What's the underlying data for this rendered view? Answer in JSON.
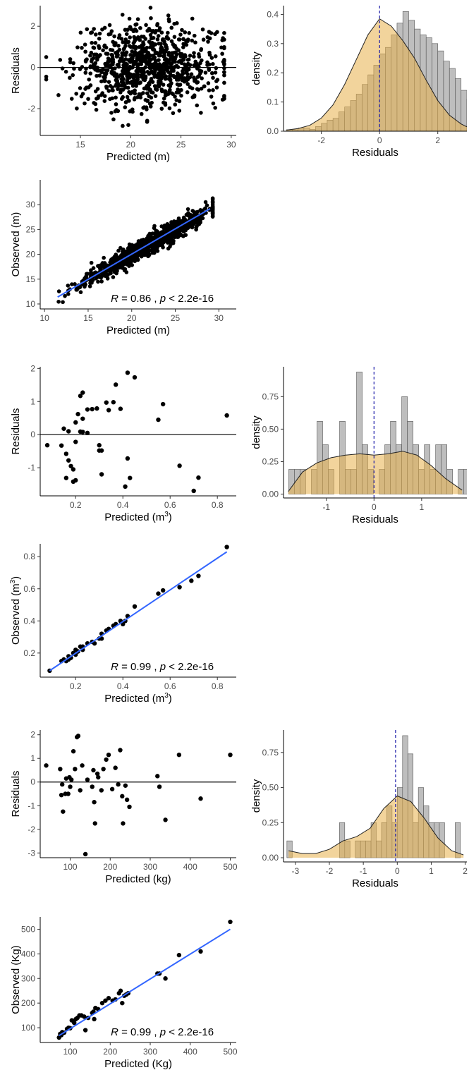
{
  "panels": [
    {
      "type": "scatter",
      "xlabel": "Predicted (m)",
      "ylabel": "Residuals",
      "xlim": [
        11,
        30.5
      ],
      "ylim": [
        -3.3,
        3.0
      ],
      "xticks": [
        15,
        20,
        25,
        30
      ],
      "yticks": [
        -2,
        0,
        2
      ],
      "hline": 0,
      "n_points": 900,
      "seed": 7
    },
    {
      "type": "histogram",
      "xlabel": "Residuals",
      "ylabel": "density",
      "xlim": [
        -3.3,
        3.0
      ],
      "ylim": [
        0,
        0.43
      ],
      "xticks": [
        -2,
        0,
        2
      ],
      "yticks": [
        0.0,
        0.1,
        0.2,
        0.3,
        0.4
      ],
      "ytick_labels": [
        "0.0",
        "0.1",
        "0.2",
        "0.3",
        "0.4"
      ],
      "vline": 0,
      "bin_width": 0.2,
      "bin_start": -3.2,
      "densities": [
        0.005,
        0.005,
        0.011,
        0.011,
        0.006,
        0.016,
        0.027,
        0.038,
        0.044,
        0.066,
        0.083,
        0.105,
        0.127,
        0.16,
        0.193,
        0.226,
        0.265,
        0.287,
        0.33,
        0.37,
        0.41,
        0.38,
        0.35,
        0.33,
        0.32,
        0.3,
        0.275,
        0.24,
        0.215,
        0.18,
        0.14,
        0.11,
        0.08
      ],
      "kde_x": [
        -3.2,
        -2.8,
        -2.4,
        -2.0,
        -1.6,
        -1.2,
        -0.8,
        -0.4,
        0.0,
        0.4,
        0.8,
        1.2,
        1.6,
        2.0,
        2.4,
        2.8,
        3.0
      ],
      "kde_y": [
        0.004,
        0.009,
        0.02,
        0.045,
        0.09,
        0.16,
        0.245,
        0.33,
        0.385,
        0.36,
        0.31,
        0.25,
        0.175,
        0.105,
        0.055,
        0.025,
        0.015
      ]
    },
    {
      "type": "scatter_fit",
      "xlabel": "Predicted (m)",
      "ylabel": "Observed (m)",
      "xlim": [
        9.5,
        32
      ],
      "ylim": [
        9,
        35
      ],
      "xticks": [
        10,
        15,
        20,
        25,
        30
      ],
      "yticks": [
        10,
        15,
        20,
        25,
        30
      ],
      "fit": [
        [
          11.5,
          11.4
        ],
        [
          29,
          29.2
        ]
      ],
      "n_points": 900,
      "seed": 11,
      "r_label": "R",
      "r_value": " = 0.86 , ",
      "p_label": "p",
      "p_value": " < 2.2e-16"
    },
    {
      "type": "scatter",
      "xlabel": "Predicted (m",
      "xlabel_sup": "3",
      "xlabel_end": ")",
      "ylabel": "Residuals",
      "xlim": [
        0.05,
        0.88
      ],
      "ylim": [
        -1.85,
        2.05
      ],
      "xticks": [
        0.2,
        0.4,
        0.6,
        0.8
      ],
      "yticks": [
        -1,
        0,
        1,
        2
      ],
      "hline": 0,
      "points": [
        [
          0.08,
          -0.32
        ],
        [
          0.14,
          -0.33
        ],
        [
          0.15,
          0.18
        ],
        [
          0.16,
          -0.58
        ],
        [
          0.16,
          -1.31
        ],
        [
          0.17,
          0.1
        ],
        [
          0.17,
          -0.78
        ],
        [
          0.18,
          -0.95
        ],
        [
          0.19,
          -1.42
        ],
        [
          0.19,
          -1.05
        ],
        [
          0.2,
          0.37
        ],
        [
          0.2,
          -1.38
        ],
        [
          0.2,
          -0.22
        ],
        [
          0.21,
          0.62
        ],
        [
          0.22,
          1.17
        ],
        [
          0.22,
          0.09
        ],
        [
          0.23,
          1.27
        ],
        [
          0.23,
          0.48
        ],
        [
          0.23,
          0.08
        ],
        [
          0.25,
          0.05
        ],
        [
          0.25,
          0.76
        ],
        [
          0.27,
          0.77
        ],
        [
          0.29,
          0.79
        ],
        [
          0.3,
          -0.32
        ],
        [
          0.3,
          -0.48
        ],
        [
          0.31,
          -0.48
        ],
        [
          0.31,
          -1.2
        ],
        [
          0.33,
          0.97
        ],
        [
          0.34,
          0.74
        ],
        [
          0.36,
          0.98
        ],
        [
          0.37,
          1.51
        ],
        [
          0.39,
          0.78
        ],
        [
          0.41,
          -1.57
        ],
        [
          0.42,
          -0.72
        ],
        [
          0.42,
          1.87
        ],
        [
          0.43,
          -1.31
        ],
        [
          0.45,
          1.73
        ],
        [
          0.55,
          0.45
        ],
        [
          0.57,
          0.92
        ],
        [
          0.64,
          -0.94
        ],
        [
          0.7,
          -1.7
        ],
        [
          0.72,
          -1.3
        ],
        [
          0.84,
          0.58
        ]
      ]
    },
    {
      "type": "histogram",
      "xlabel": "Residuals",
      "ylabel": "density",
      "xlim": [
        -1.9,
        1.95
      ],
      "ylim": [
        -0.03,
        0.98
      ],
      "xticks": [
        -1,
        0,
        1
      ],
      "yticks": [
        0.0,
        0.25,
        0.5,
        0.75
      ],
      "ytick_labels": [
        "0.00",
        "0.25",
        "0.50",
        "0.75"
      ],
      "vline": 0,
      "bin_width": 0.1186,
      "bin_start": -1.79,
      "densities": [
        0.19,
        0.19,
        0.19,
        0,
        0.19,
        0.56,
        0.38,
        0.19,
        0,
        0.56,
        0.19,
        0.19,
        0.94,
        0.38,
        0.19,
        0,
        0.19,
        0.38,
        0.56,
        0.38,
        0.75,
        0.56,
        0.38,
        0.19,
        0.38,
        0.19,
        0.38,
        0.38,
        0.19,
        0,
        0.19,
        0.19,
        0.19
      ],
      "kde_x": [
        -1.8,
        -1.5,
        -1.2,
        -0.9,
        -0.6,
        -0.3,
        0.0,
        0.3,
        0.6,
        0.9,
        1.2,
        1.5,
        1.85
      ],
      "kde_y": [
        0.02,
        0.17,
        0.24,
        0.28,
        0.3,
        0.31,
        0.3,
        0.31,
        0.33,
        0.3,
        0.22,
        0.12,
        0.03
      ]
    },
    {
      "type": "scatter_fit",
      "xlabel": "Predicted (m",
      "xlabel_sup": "3",
      "xlabel_end": ")",
      "ylabel": "Observed (m",
      "ylabel_sup": "3",
      "ylabel_end": ")",
      "xlim": [
        0.05,
        0.88
      ],
      "ylim": [
        0.05,
        0.88
      ],
      "xticks": [
        0.2,
        0.4,
        0.6,
        0.8
      ],
      "yticks": [
        0.2,
        0.4,
        0.6,
        0.8
      ],
      "fit": [
        [
          0.09,
          0.09
        ],
        [
          0.84,
          0.83
        ]
      ],
      "points": [
        [
          0.09,
          0.09
        ],
        [
          0.14,
          0.15
        ],
        [
          0.15,
          0.16
        ],
        [
          0.16,
          0.15
        ],
        [
          0.17,
          0.18
        ],
        [
          0.17,
          0.16
        ],
        [
          0.18,
          0.17
        ],
        [
          0.19,
          0.2
        ],
        [
          0.2,
          0.19
        ],
        [
          0.2,
          0.22
        ],
        [
          0.21,
          0.21
        ],
        [
          0.22,
          0.24
        ],
        [
          0.23,
          0.24
        ],
        [
          0.23,
          0.22
        ],
        [
          0.25,
          0.26
        ],
        [
          0.27,
          0.27
        ],
        [
          0.28,
          0.26
        ],
        [
          0.3,
          0.29
        ],
        [
          0.31,
          0.32
        ],
        [
          0.31,
          0.29
        ],
        [
          0.33,
          0.34
        ],
        [
          0.34,
          0.35
        ],
        [
          0.36,
          0.37
        ],
        [
          0.37,
          0.38
        ],
        [
          0.39,
          0.4
        ],
        [
          0.4,
          0.38
        ],
        [
          0.41,
          0.4
        ],
        [
          0.42,
          0.43
        ],
        [
          0.45,
          0.49
        ],
        [
          0.55,
          0.57
        ],
        [
          0.57,
          0.59
        ],
        [
          0.64,
          0.61
        ],
        [
          0.69,
          0.65
        ],
        [
          0.72,
          0.68
        ],
        [
          0.84,
          0.86
        ]
      ],
      "r_label": "R",
      "r_value": " = 0.99 , ",
      "p_label": "p",
      "p_value": " < 2.2e-16"
    },
    {
      "type": "scatter",
      "xlabel": "Predicted (kg)",
      "ylabel": "Residuals",
      "xlim": [
        25,
        515
      ],
      "ylim": [
        -3.2,
        2.2
      ],
      "xticks": [
        100,
        200,
        300,
        400,
        500
      ],
      "yticks": [
        -3,
        -2,
        -1,
        0,
        1,
        2
      ],
      "hline": 0,
      "points": [
        [
          40,
          0.7
        ],
        [
          75,
          0.55
        ],
        [
          78,
          -0.55
        ],
        [
          80,
          -0.1
        ],
        [
          82,
          -1.25
        ],
        [
          88,
          -0.5
        ],
        [
          90,
          0.15
        ],
        [
          95,
          -0.5
        ],
        [
          98,
          0.2
        ],
        [
          100,
          -0.2
        ],
        [
          103,
          0.1
        ],
        [
          108,
          1.3
        ],
        [
          112,
          0.55
        ],
        [
          117,
          1.9
        ],
        [
          120,
          1.95
        ],
        [
          125,
          -0.35
        ],
        [
          130,
          0.7
        ],
        [
          138,
          -3.05
        ],
        [
          143,
          0.1
        ],
        [
          155,
          -0.2
        ],
        [
          158,
          0.5
        ],
        [
          160,
          -0.85
        ],
        [
          162,
          -1.75
        ],
        [
          168,
          0.35
        ],
        [
          170,
          0.2
        ],
        [
          178,
          -0.35
        ],
        [
          183,
          0.55
        ],
        [
          190,
          0.95
        ],
        [
          196,
          1.15
        ],
        [
          205,
          -0.3
        ],
        [
          213,
          0.6
        ],
        [
          220,
          -0.1
        ],
        [
          225,
          1.35
        ],
        [
          230,
          -0.6
        ],
        [
          232,
          -1.75
        ],
        [
          238,
          -0.15
        ],
        [
          242,
          -0.75
        ],
        [
          248,
          -1.05
        ],
        [
          318,
          0.25
        ],
        [
          323,
          -0.2
        ],
        [
          338,
          -1.6
        ],
        [
          372,
          1.15
        ],
        [
          426,
          -0.7
        ],
        [
          500,
          1.15
        ]
      ]
    },
    {
      "type": "histogram",
      "xlabel": "Residuals",
      "ylabel": "density",
      "xlim": [
        -3.35,
        2.05
      ],
      "ylim": [
        -0.03,
        0.91
      ],
      "xticks": [
        -3,
        -2,
        -1,
        0,
        1,
        2
      ],
      "yticks": [
        0.0,
        0.25,
        0.5,
        0.75
      ],
      "ytick_labels": [
        "0.00",
        "0.25",
        "0.50",
        "0.75"
      ],
      "vline": -0.05,
      "bin_width": 0.1548,
      "bin_start": -3.25,
      "densities": [
        0.12,
        0,
        0,
        0,
        0,
        0,
        0,
        0,
        0,
        0,
        0.25,
        0.12,
        0,
        0.12,
        0.12,
        0.12,
        0.25,
        0.12,
        0.25,
        0.37,
        0.25,
        0.5,
        0.87,
        0.74,
        0.25,
        0.5,
        0.37,
        0.25,
        0.25,
        0.25,
        0,
        0,
        0.25
      ],
      "kde_x": [
        -3.2,
        -2.8,
        -2.4,
        -2.0,
        -1.6,
        -1.2,
        -0.8,
        -0.4,
        0.0,
        0.4,
        0.8,
        1.2,
        1.6,
        1.95
      ],
      "kde_y": [
        0.05,
        0.03,
        0.03,
        0.06,
        0.12,
        0.15,
        0.21,
        0.35,
        0.44,
        0.4,
        0.28,
        0.14,
        0.05,
        0.02
      ]
    },
    {
      "type": "scatter_fit",
      "xlabel": "Predicted (Kg)",
      "ylabel": "Observed  (Kg)",
      "xlim": [
        25,
        515
      ],
      "ylim": [
        40,
        550
      ],
      "xticks": [
        100,
        200,
        300,
        400,
        500
      ],
      "yticks": [
        100,
        200,
        300,
        400,
        500
      ],
      "fit": [
        [
          72,
          68
        ],
        [
          500,
          500
        ]
      ],
      "points": [
        [
          72,
          60
        ],
        [
          75,
          75
        ],
        [
          78,
          70
        ],
        [
          80,
          82
        ],
        [
          85,
          80
        ],
        [
          92,
          95
        ],
        [
          96,
          100
        ],
        [
          100,
          98
        ],
        [
          104,
          130
        ],
        [
          110,
          120
        ],
        [
          114,
          135
        ],
        [
          118,
          140
        ],
        [
          123,
          150
        ],
        [
          128,
          150
        ],
        [
          135,
          145
        ],
        [
          138,
          90
        ],
        [
          145,
          140
        ],
        [
          155,
          160
        ],
        [
          158,
          165
        ],
        [
          160,
          135
        ],
        [
          163,
          180
        ],
        [
          170,
          175
        ],
        [
          180,
          200
        ],
        [
          188,
          210
        ],
        [
          196,
          220
        ],
        [
          206,
          210
        ],
        [
          213,
          215
        ],
        [
          222,
          240
        ],
        [
          226,
          250
        ],
        [
          230,
          200
        ],
        [
          235,
          230
        ],
        [
          240,
          235
        ],
        [
          245,
          240
        ],
        [
          318,
          320
        ],
        [
          323,
          320
        ],
        [
          338,
          300
        ],
        [
          372,
          395
        ],
        [
          426,
          410
        ],
        [
          500,
          530
        ]
      ],
      "r_label": "R",
      "r_value": " = 0.99 , ",
      "p_label": "p",
      "p_value": " < 2.2e-16"
    }
  ],
  "colors": {
    "point": "#000000",
    "fit_line": "#3366ff",
    "hist_fill": "#bebebe",
    "density_fill": "#e8b04a",
    "vline": "#1a1aa8"
  }
}
